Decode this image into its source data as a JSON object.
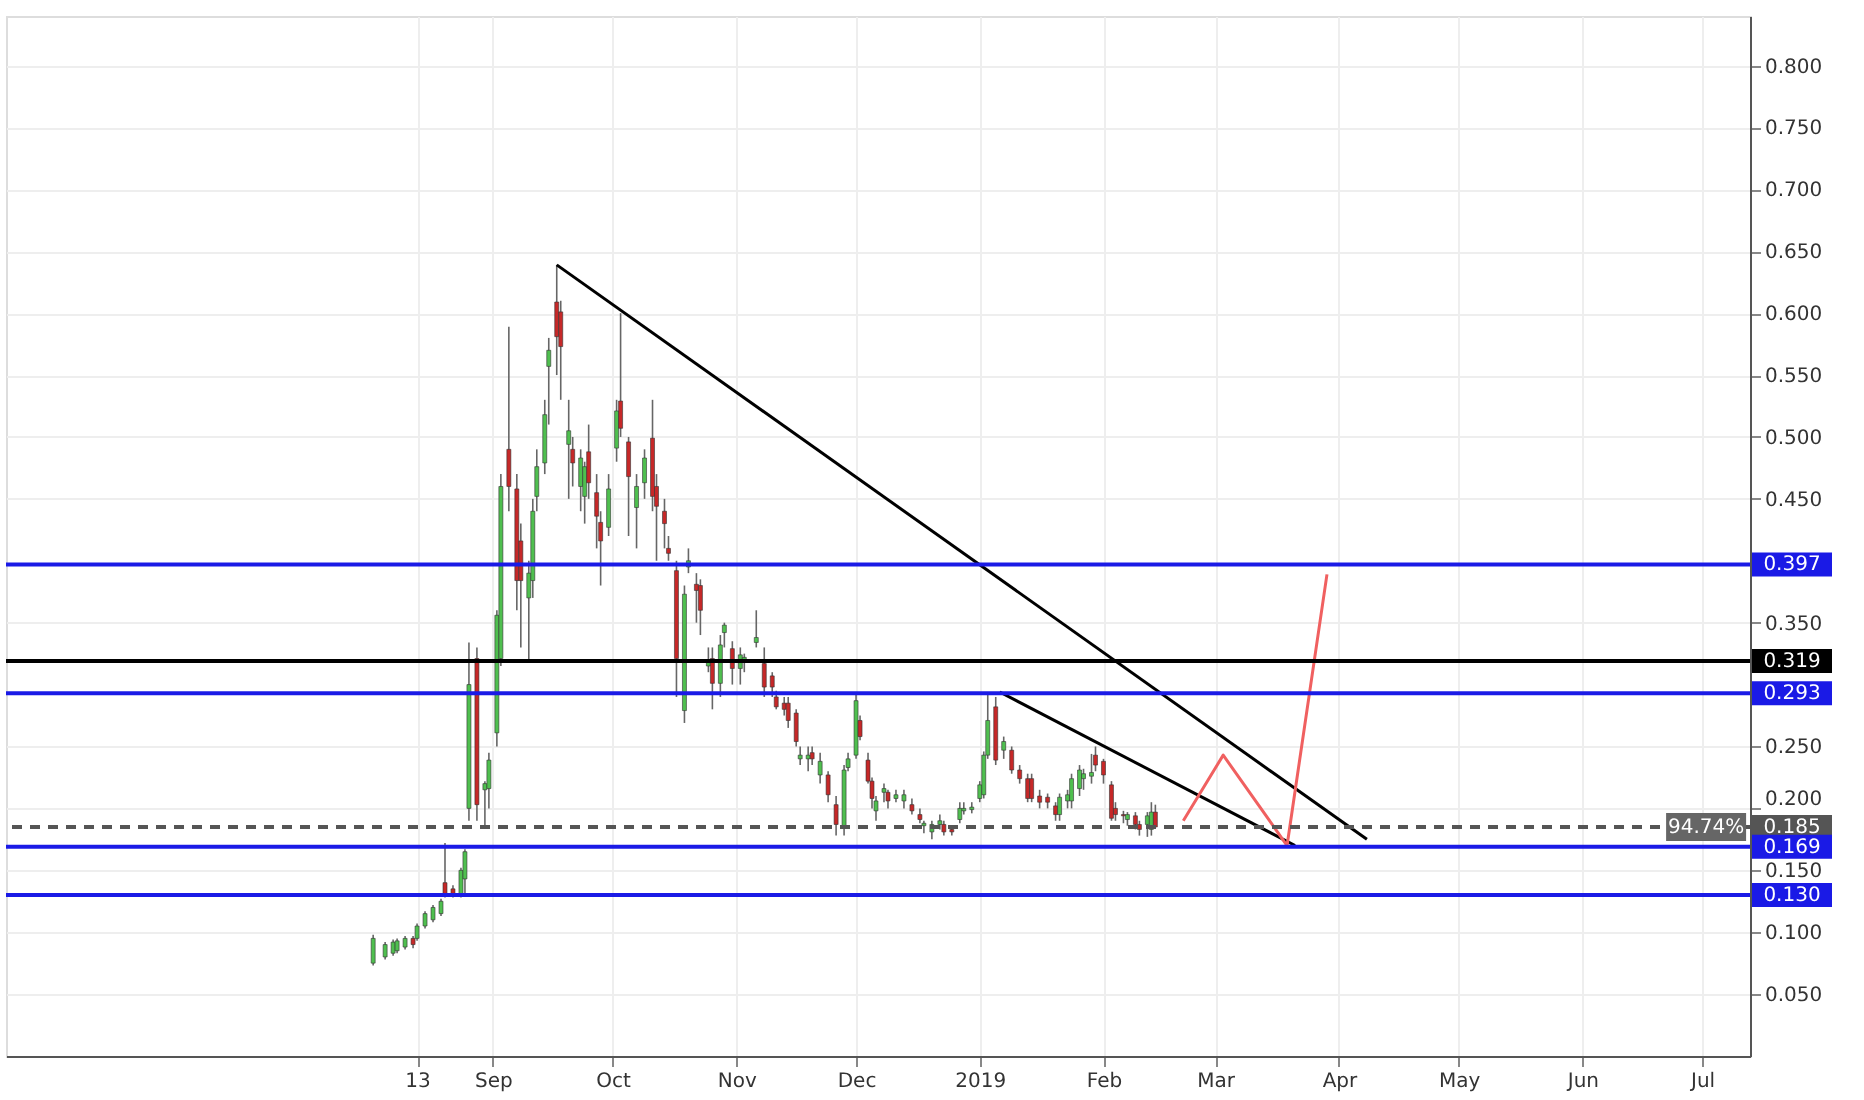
{
  "chart_data": {
    "type": "candlestick",
    "xlim": [
      "2018-05-02",
      "2019-07-13"
    ],
    "ylim": [
      0,
      0.84
    ],
    "xticks": [
      {
        "value": "2018-08-13",
        "label": "13"
      },
      {
        "value": "2018-09-01",
        "label": "Sep"
      },
      {
        "value": "2018-10-01",
        "label": "Oct"
      },
      {
        "value": "2018-11-01",
        "label": "Nov"
      },
      {
        "value": "2018-12-01",
        "label": "Dec"
      },
      {
        "value": "2019-01-01",
        "label": "2019"
      },
      {
        "value": "2019-02-01",
        "label": "Feb"
      },
      {
        "value": "2019-03-01",
        "label": "Mar"
      },
      {
        "value": "2019-04-01",
        "label": "Apr"
      },
      {
        "value": "2019-05-01",
        "label": "May"
      },
      {
        "value": "2019-06-01",
        "label": "Jun"
      },
      {
        "value": "2019-07-01",
        "label": "Jul"
      }
    ],
    "yticks": [
      {
        "value": 0.05,
        "label": "0.050"
      },
      {
        "value": 0.1,
        "label": "0.100"
      },
      {
        "value": 0.15,
        "label": "0.150"
      },
      {
        "value": 0.2,
        "label": "0.200"
      },
      {
        "value": 0.25,
        "label": "0.250"
      },
      {
        "value": 0.35,
        "label": "0.350"
      },
      {
        "value": 0.45,
        "label": "0.450"
      },
      {
        "value": 0.5,
        "label": "0.500"
      },
      {
        "value": 0.55,
        "label": "0.550"
      },
      {
        "value": 0.6,
        "label": "0.600"
      },
      {
        "value": 0.65,
        "label": "0.650"
      },
      {
        "value": 0.7,
        "label": "0.700"
      },
      {
        "value": 0.75,
        "label": "0.750"
      },
      {
        "value": 0.8,
        "label": "0.800"
      }
    ],
    "grid": true,
    "x": [
      "2018-08-02",
      "2018-08-05",
      "2018-08-07",
      "2018-08-08",
      "2018-08-10",
      "2018-08-12",
      "2018-08-13",
      "2018-08-15",
      "2018-08-17",
      "2018-08-19",
      "2018-08-20",
      "2018-08-22",
      "2018-08-24",
      "2018-08-25",
      "2018-08-26",
      "2018-08-28",
      "2018-08-30",
      "2018-08-31",
      "2018-09-02",
      "2018-09-03",
      "2018-09-05",
      "2018-09-07",
      "2018-09-08",
      "2018-09-10",
      "2018-09-11",
      "2018-09-12",
      "2018-09-14",
      "2018-09-15",
      "2018-09-17",
      "2018-09-18",
      "2018-09-20",
      "2018-09-21",
      "2018-09-23",
      "2018-09-24",
      "2018-09-25",
      "2018-09-27",
      "2018-09-28",
      "2018-09-30",
      "2018-10-02",
      "2018-10-03",
      "2018-10-05",
      "2018-10-07",
      "2018-10-09",
      "2018-10-11",
      "2018-10-12",
      "2018-10-14",
      "2018-10-15",
      "2018-10-17",
      "2018-10-19",
      "2018-10-20",
      "2018-10-22",
      "2018-10-23",
      "2018-10-25",
      "2018-10-26",
      "2018-10-28",
      "2018-10-29",
      "2018-10-31",
      "2018-11-02",
      "2018-11-03",
      "2018-11-06",
      "2018-11-08",
      "2018-11-10",
      "2018-11-11",
      "2018-11-13",
      "2018-11-14",
      "2018-11-16",
      "2018-11-17",
      "2018-11-19",
      "2018-11-20",
      "2018-11-22",
      "2018-11-24",
      "2018-11-26",
      "2018-11-28",
      "2018-11-29",
      "2018-12-01",
      "2018-12-02",
      "2018-12-04",
      "2018-12-05",
      "2018-12-06",
      "2018-12-08",
      "2018-12-09",
      "2018-12-11",
      "2018-12-13",
      "2018-12-15",
      "2018-12-17",
      "2018-12-18",
      "2018-12-20",
      "2018-12-22",
      "2018-12-23",
      "2018-12-25",
      "2018-12-27",
      "2018-12-28",
      "2018-12-30",
      "2019-01-01",
      "2019-01-02",
      "2019-01-03",
      "2019-01-05",
      "2019-01-07",
      "2019-01-09",
      "2019-01-11",
      "2019-01-13",
      "2019-01-14",
      "2019-01-16",
      "2019-01-18",
      "2019-01-20",
      "2019-01-21",
      "2019-01-23",
      "2019-01-24",
      "2019-01-26",
      "2019-01-27",
      "2019-01-29",
      "2019-01-30",
      "2019-02-01",
      "2019-02-03",
      "2019-02-04",
      "2019-02-06",
      "2019-02-07",
      "2019-02-09",
      "2019-02-10",
      "2019-02-12",
      "2019-02-13",
      "2019-02-14"
    ],
    "ohlc": [
      [
        0.075,
        0.098,
        0.073,
        0.095
      ],
      [
        0.08,
        0.092,
        0.078,
        0.09
      ],
      [
        0.083,
        0.094,
        0.081,
        0.092
      ],
      [
        0.085,
        0.095,
        0.083,
        0.093
      ],
      [
        0.088,
        0.097,
        0.086,
        0.095
      ],
      [
        0.095,
        0.097,
        0.087,
        0.09
      ],
      [
        0.095,
        0.107,
        0.093,
        0.105
      ],
      [
        0.105,
        0.117,
        0.103,
        0.115
      ],
      [
        0.11,
        0.122,
        0.108,
        0.12
      ],
      [
        0.115,
        0.127,
        0.113,
        0.125
      ],
      [
        0.14,
        0.172,
        0.128,
        0.13
      ],
      [
        0.135,
        0.138,
        0.128,
        0.13
      ],
      [
        0.13,
        0.152,
        0.128,
        0.15
      ],
      [
        0.143,
        0.167,
        0.131,
        0.165
      ],
      [
        0.2,
        0.334,
        0.19,
        0.3
      ],
      [
        0.321,
        0.33,
        0.19,
        0.203
      ],
      [
        0.215,
        0.222,
        0.185,
        0.22
      ],
      [
        0.216,
        0.245,
        0.2,
        0.239
      ],
      [
        0.261,
        0.36,
        0.25,
        0.356
      ],
      [
        0.321,
        0.47,
        0.315,
        0.46
      ],
      [
        0.49,
        0.589,
        0.44,
        0.46
      ],
      [
        0.458,
        0.47,
        0.36,
        0.384
      ],
      [
        0.416,
        0.43,
        0.33,
        0.384
      ],
      [
        0.37,
        0.4,
        0.32,
        0.39
      ],
      [
        0.384,
        0.45,
        0.37,
        0.44
      ],
      [
        0.452,
        0.49,
        0.44,
        0.476
      ],
      [
        0.479,
        0.53,
        0.47,
        0.518
      ],
      [
        0.557,
        0.58,
        0.51,
        0.57
      ],
      [
        0.609,
        0.639,
        0.55,
        0.581
      ],
      [
        0.601,
        0.61,
        0.53,
        0.573
      ],
      [
        0.494,
        0.53,
        0.45,
        0.505
      ],
      [
        0.49,
        0.5,
        0.46,
        0.479
      ],
      [
        0.46,
        0.49,
        0.44,
        0.483
      ],
      [
        0.452,
        0.48,
        0.43,
        0.476
      ],
      [
        0.488,
        0.51,
        0.45,
        0.463
      ],
      [
        0.455,
        0.47,
        0.41,
        0.436
      ],
      [
        0.431,
        0.44,
        0.38,
        0.416
      ],
      [
        0.427,
        0.47,
        0.42,
        0.458
      ],
      [
        0.491,
        0.53,
        0.48,
        0.521
      ],
      [
        0.529,
        0.6,
        0.5,
        0.507
      ],
      [
        0.496,
        0.5,
        0.42,
        0.468
      ],
      [
        0.443,
        0.47,
        0.41,
        0.46
      ],
      [
        0.463,
        0.49,
        0.45,
        0.483
      ],
      [
        0.499,
        0.53,
        0.44,
        0.452
      ],
      [
        0.46,
        0.47,
        0.4,
        0.444
      ],
      [
        0.44,
        0.45,
        0.41,
        0.43
      ],
      [
        0.41,
        0.42,
        0.4,
        0.406
      ],
      [
        0.392,
        0.4,
        0.29,
        0.321
      ],
      [
        0.279,
        0.38,
        0.269,
        0.373
      ],
      [
        0.395,
        0.41,
        0.39,
        0.4
      ],
      [
        0.381,
        0.39,
        0.35,
        0.376
      ],
      [
        0.38,
        0.385,
        0.34,
        0.36
      ],
      [
        0.315,
        0.33,
        0.31,
        0.318
      ],
      [
        0.321,
        0.33,
        0.28,
        0.301
      ],
      [
        0.301,
        0.34,
        0.29,
        0.332
      ],
      [
        0.342,
        0.35,
        0.33,
        0.348
      ],
      [
        0.329,
        0.335,
        0.3,
        0.313
      ],
      [
        0.313,
        0.33,
        0.3,
        0.324
      ],
      [
        0.318,
        0.325,
        0.31,
        0.322
      ],
      [
        0.334,
        0.36,
        0.33,
        0.338
      ],
      [
        0.317,
        0.33,
        0.29,
        0.298
      ],
      [
        0.307,
        0.31,
        0.29,
        0.298
      ],
      [
        0.29,
        0.295,
        0.28,
        0.282
      ],
      [
        0.285,
        0.29,
        0.275,
        0.28
      ],
      [
        0.285,
        0.29,
        0.265,
        0.271
      ],
      [
        0.277,
        0.28,
        0.25,
        0.254
      ],
      [
        0.24,
        0.25,
        0.235,
        0.243
      ],
      [
        0.24,
        0.25,
        0.23,
        0.243
      ],
      [
        0.245,
        0.25,
        0.235,
        0.24
      ],
      [
        0.227,
        0.245,
        0.22,
        0.238
      ],
      [
        0.227,
        0.23,
        0.205,
        0.211
      ],
      [
        0.203,
        0.21,
        0.178,
        0.187
      ],
      [
        0.184,
        0.235,
        0.178,
        0.231
      ],
      [
        0.233,
        0.245,
        0.23,
        0.24
      ],
      [
        0.243,
        0.292,
        0.24,
        0.287
      ],
      [
        0.271,
        0.275,
        0.255,
        0.258
      ],
      [
        0.239,
        0.245,
        0.22,
        0.222
      ],
      [
        0.222,
        0.225,
        0.2,
        0.208
      ],
      [
        0.198,
        0.21,
        0.19,
        0.206
      ],
      [
        0.213,
        0.22,
        0.205,
        0.216
      ],
      [
        0.213,
        0.215,
        0.2,
        0.206
      ],
      [
        0.208,
        0.215,
        0.205,
        0.211
      ],
      [
        0.206,
        0.215,
        0.2,
        0.211
      ],
      [
        0.203,
        0.208,
        0.195,
        0.198
      ],
      [
        0.195,
        0.2,
        0.188,
        0.191
      ],
      [
        0.186,
        0.19,
        0.18,
        0.188
      ],
      [
        0.181,
        0.19,
        0.175,
        0.187
      ],
      [
        0.187,
        0.195,
        0.183,
        0.19
      ],
      [
        0.187,
        0.19,
        0.178,
        0.181
      ],
      [
        0.183,
        0.186,
        0.178,
        0.181
      ],
      [
        0.191,
        0.205,
        0.188,
        0.2
      ],
      [
        0.198,
        0.205,
        0.195,
        0.2
      ],
      [
        0.199,
        0.205,
        0.196,
        0.201
      ],
      [
        0.208,
        0.222,
        0.205,
        0.219
      ],
      [
        0.211,
        0.246,
        0.208,
        0.243
      ],
      [
        0.243,
        0.294,
        0.24,
        0.271
      ],
      [
        0.282,
        0.29,
        0.235,
        0.239
      ],
      [
        0.247,
        0.258,
        0.24,
        0.254
      ],
      [
        0.247,
        0.25,
        0.228,
        0.231
      ],
      [
        0.231,
        0.235,
        0.22,
        0.224
      ],
      [
        0.224,
        0.228,
        0.205,
        0.208
      ],
      [
        0.224,
        0.228,
        0.205,
        0.208
      ],
      [
        0.21,
        0.215,
        0.2,
        0.205
      ],
      [
        0.209,
        0.212,
        0.2,
        0.205
      ],
      [
        0.202,
        0.205,
        0.19,
        0.195
      ],
      [
        0.195,
        0.212,
        0.19,
        0.209
      ],
      [
        0.206,
        0.215,
        0.2,
        0.211
      ],
      [
        0.206,
        0.228,
        0.2,
        0.224
      ],
      [
        0.216,
        0.235,
        0.21,
        0.231
      ],
      [
        0.224,
        0.232,
        0.215,
        0.228
      ],
      [
        0.226,
        0.244,
        0.22,
        0.229
      ],
      [
        0.243,
        0.25,
        0.23,
        0.235
      ],
      [
        0.238,
        0.24,
        0.22,
        0.227
      ],
      [
        0.219,
        0.222,
        0.19,
        0.192
      ],
      [
        0.2,
        0.205,
        0.19,
        0.195
      ],
      [
        0.195,
        0.198,
        0.188,
        0.194
      ],
      [
        0.191,
        0.197,
        0.186,
        0.195
      ],
      [
        0.194,
        0.197,
        0.183,
        0.187
      ],
      [
        0.187,
        0.19,
        0.178,
        0.183
      ],
      [
        0.187,
        0.197,
        0.177,
        0.194
      ],
      [
        0.183,
        0.205,
        0.178,
        0.197
      ],
      [
        0.197,
        0.203,
        0.185,
        0.185
      ]
    ],
    "colors": [
      "#4fbf4f",
      "#4fbf4f",
      "#4fbf4f",
      "#4fbf4f",
      "#4fbf4f",
      "#c62828",
      "#4fbf4f",
      "#4fbf4f",
      "#4fbf4f",
      "#4fbf4f",
      "#c62828",
      "#c62828",
      "#4fbf4f",
      "#4fbf4f",
      "#4fbf4f",
      "#c62828",
      "#4fbf4f",
      "#4fbf4f",
      "#4fbf4f",
      "#4fbf4f",
      "#c62828",
      "#c62828",
      "#c62828",
      "#4fbf4f",
      "#4fbf4f",
      "#4fbf4f",
      "#4fbf4f",
      "#4fbf4f",
      "#c62828",
      "#c62828",
      "#4fbf4f",
      "#c62828",
      "#4fbf4f",
      "#4fbf4f",
      "#c62828",
      "#c62828",
      "#c62828",
      "#4fbf4f",
      "#4fbf4f",
      "#c62828",
      "#c62828",
      "#4fbf4f",
      "#4fbf4f",
      "#c62828",
      "#c62828",
      "#c62828",
      "#c62828",
      "#c62828",
      "#4fbf4f",
      "#4fbf4f",
      "#c62828",
      "#c62828",
      "#4fbf4f",
      "#c62828",
      "#4fbf4f",
      "#4fbf4f",
      "#c62828",
      "#4fbf4f",
      "#4fbf4f",
      "#4fbf4f",
      "#c62828",
      "#c62828",
      "#c62828",
      "#c62828",
      "#c62828",
      "#c62828",
      "#4fbf4f",
      "#4fbf4f",
      "#c62828",
      "#4fbf4f",
      "#c62828",
      "#c62828",
      "#4fbf4f",
      "#4fbf4f",
      "#4fbf4f",
      "#c62828",
      "#c62828",
      "#c62828",
      "#4fbf4f",
      "#4fbf4f",
      "#c62828",
      "#4fbf4f",
      "#4fbf4f",
      "#c62828",
      "#c62828",
      "#4fbf4f",
      "#4fbf4f",
      "#4fbf4f",
      "#c62828",
      "#c62828",
      "#4fbf4f",
      "#4fbf4f",
      "#4fbf4f",
      "#4fbf4f",
      "#4fbf4f",
      "#4fbf4f",
      "#c62828",
      "#4fbf4f",
      "#c62828",
      "#c62828",
      "#c62828",
      "#c62828",
      "#c62828",
      "#c62828",
      "#c62828",
      "#4fbf4f",
      "#4fbf4f",
      "#4fbf4f",
      "#4fbf4f",
      "#4fbf4f",
      "#4fbf4f",
      "#c62828",
      "#c62828",
      "#c62828",
      "#c62828",
      "#c62828",
      "#4fbf4f",
      "#c62828",
      "#c62828",
      "#4fbf4f",
      "#4fbf4f",
      "#c62828"
    ],
    "series": [
      {
        "type": "line",
        "color": "#000000",
        "x": [
          "2018-09-17",
          "2019-04-08"
        ],
        "values": [
          0.639,
          0.175
        ]
      },
      {
        "type": "line",
        "color": "#000000",
        "x": [
          "2019-01-06",
          "2019-03-21"
        ],
        "values": [
          0.294,
          0.17
        ]
      },
      {
        "type": "line",
        "color": "#f06060",
        "x": [
          "2019-02-21",
          "2019-03-03",
          "2019-03-19",
          "2019-03-29"
        ],
        "values": [
          0.19,
          0.243,
          0.17,
          0.389
        ]
      }
    ],
    "ref_lines": [
      {
        "axis": "y",
        "value": 0.397,
        "label": "0.397",
        "color": "#1a1ae6"
      },
      {
        "axis": "y",
        "value": 0.319,
        "label": "0.319",
        "color": "#000000"
      },
      {
        "axis": "y",
        "value": 0.293,
        "label": "0.293",
        "color": "#1a1ae6"
      },
      {
        "axis": "y",
        "value": 0.185,
        "label": "0.185",
        "color": "#555555",
        "line_style": "dashed"
      },
      {
        "axis": "y",
        "value": 0.169,
        "label": "0.169",
        "color": "#1a1ae6"
      },
      {
        "axis": "y",
        "value": 0.13,
        "label": "0.130",
        "color": "#1a1ae6"
      }
    ],
    "annotations": [
      {
        "text": "94.74%",
        "x": "2019-07-02",
        "y": 0.185
      }
    ]
  }
}
